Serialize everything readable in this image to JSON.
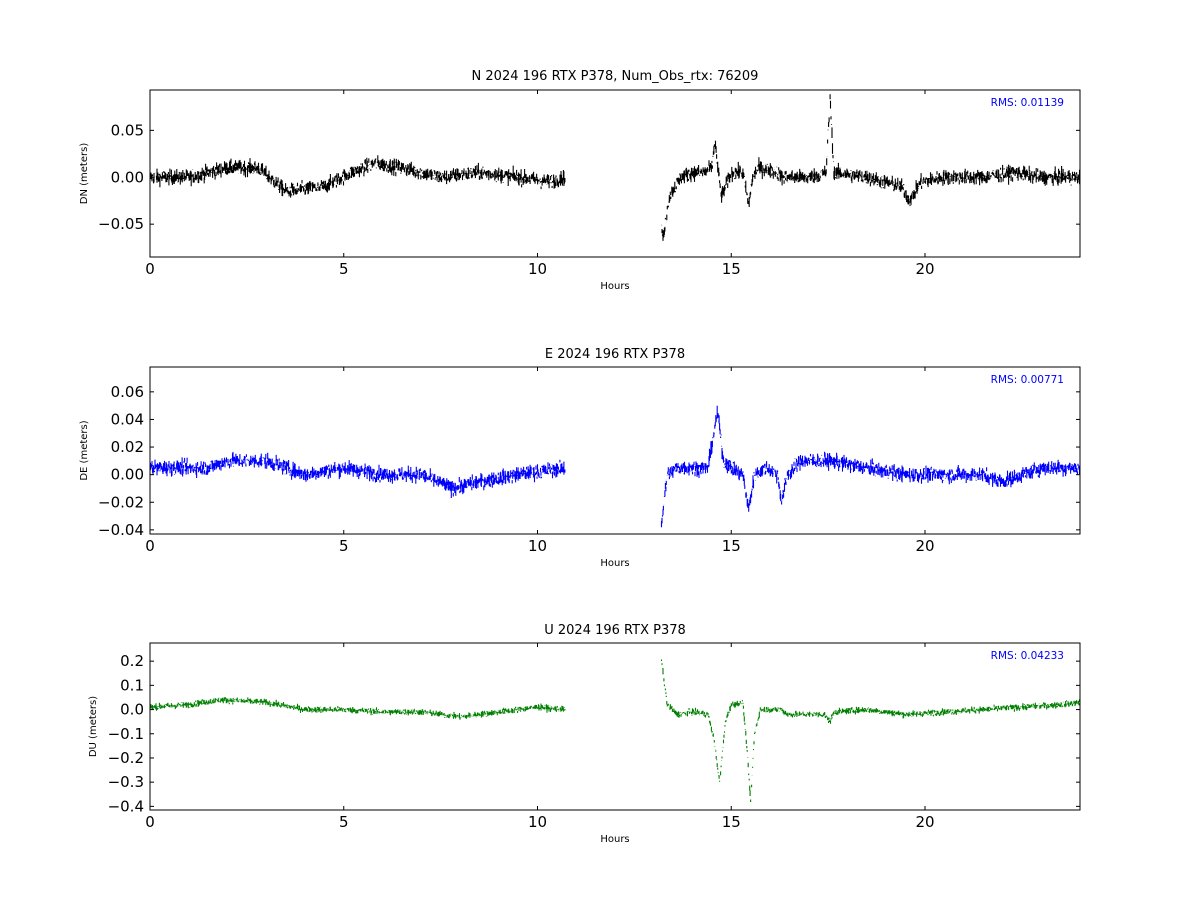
{
  "chart_data": [
    {
      "type": "scatter",
      "title": "N 2024 196 RTX  P378, Num_Obs_rtx: 76209",
      "xlabel": "Hours",
      "ylabel": "DN (meters)",
      "xlim": [
        0,
        24
      ],
      "ylim": [
        -0.085,
        0.093
      ],
      "xticks": [
        0,
        5,
        10,
        15,
        20
      ],
      "xtick_labels": [
        "0",
        "5",
        "10",
        "15",
        "20"
      ],
      "yticks": [
        0.05,
        0.0,
        -0.05
      ],
      "ytick_labels": [
        "0.05",
        "0.00",
        "−0.05"
      ],
      "grid": false,
      "color": "#000000",
      "annotation": "RMS:  0.01139",
      "annotation_color": "#0000ff",
      "series": [
        {
          "noise": 0.008,
          "x": [
            0.0,
            1.0,
            2.0,
            2.8,
            3.5,
            4.5,
            5.2,
            5.8,
            6.5,
            7.5,
            8.5,
            9.5,
            10.3,
            10.72,
            null,
            13.2,
            13.25,
            13.4,
            13.7,
            14.0,
            14.3,
            14.5,
            14.58,
            14.65,
            14.75,
            15.0,
            15.3,
            15.45,
            15.55,
            15.7,
            16.2,
            16.3,
            17.0,
            17.45,
            17.55,
            17.65,
            18.5,
            19.4,
            19.6,
            19.9,
            20.5,
            21.5,
            22.3,
            23.0,
            24.0
          ],
          "y": [
            0.0,
            0.0,
            0.01,
            0.01,
            -0.015,
            -0.01,
            0.005,
            0.015,
            0.01,
            0.0,
            0.005,
            0.0,
            -0.005,
            0.0,
            null,
            -0.055,
            -0.065,
            -0.02,
            0.0,
            0.005,
            0.005,
            0.01,
            0.04,
            0.01,
            -0.02,
            0.005,
            0.005,
            -0.03,
            0.0,
            0.01,
            0.005,
            0.0,
            0.0,
            0.005,
            0.085,
            0.005,
            0.0,
            -0.01,
            -0.025,
            -0.005,
            0.0,
            0.0,
            0.005,
            0.0,
            0.0
          ]
        }
      ]
    },
    {
      "type": "scatter",
      "title": "E 2024 196 RTX  P378",
      "xlabel": "Hours",
      "ylabel": "DE (meters)",
      "xlim": [
        0,
        24
      ],
      "ylim": [
        -0.043,
        0.078
      ],
      "xticks": [
        0,
        5,
        10,
        15,
        20
      ],
      "xtick_labels": [
        "0",
        "5",
        "10",
        "15",
        "20"
      ],
      "yticks": [
        0.06,
        0.04,
        0.02,
        0.0,
        -0.02,
        -0.04
      ],
      "ytick_labels": [
        "0.06",
        "0.04",
        "0.02",
        "0.00",
        "−0.02",
        "−0.04"
      ],
      "grid": false,
      "color": "#0000ff",
      "annotation": "RMS:  0.00771",
      "annotation_color": "#0000ff",
      "series": [
        {
          "noise": 0.0055,
          "x": [
            0.0,
            1.5,
            2.0,
            3.0,
            4.0,
            5.0,
            6.0,
            7.0,
            7.8,
            8.5,
            9.5,
            10.72,
            null,
            13.2,
            13.35,
            13.6,
            14.0,
            14.4,
            14.55,
            14.65,
            14.8,
            15.0,
            15.3,
            15.45,
            15.6,
            15.9,
            16.2,
            16.3,
            16.45,
            16.8,
            17.5,
            18.5,
            19.5,
            20.5,
            21.5,
            22.0,
            23.0,
            24.0
          ],
          "y": [
            0.005,
            0.005,
            0.01,
            0.01,
            0.0,
            0.005,
            0.0,
            0.0,
            -0.01,
            -0.005,
            0.0,
            0.005,
            null,
            -0.035,
            0.0,
            0.005,
            0.005,
            0.005,
            0.03,
            0.045,
            0.01,
            0.005,
            0.0,
            -0.025,
            0.0,
            0.005,
            0.0,
            -0.02,
            0.0,
            0.01,
            0.01,
            0.005,
            0.0,
            0.0,
            0.0,
            -0.005,
            0.005,
            0.005
          ]
        }
      ]
    },
    {
      "type": "scatter",
      "title": "U 2024 196 RTX  P378",
      "xlabel": "Hours",
      "ylabel": "DU (meters)",
      "xlim": [
        0,
        24
      ],
      "ylim": [
        -0.415,
        0.275
      ],
      "xticks": [
        0,
        5,
        10,
        15,
        20
      ],
      "xtick_labels": [
        "0",
        "5",
        "10",
        "15",
        "20"
      ],
      "yticks": [
        0.2,
        0.1,
        0.0,
        -0.1,
        -0.2,
        -0.3,
        -0.4
      ],
      "ytick_labels": [
        "0.2",
        "0.1",
        "0.0",
        "−0.1",
        "−0.2",
        "−0.3",
        "−0.4"
      ],
      "grid": false,
      "color": "#008000",
      "annotation": "RMS:  0.04233",
      "annotation_color": "#0000ff",
      "series": [
        {
          "noise": 0.013,
          "x": [
            0.0,
            1.0,
            1.8,
            3.0,
            4.0,
            5.0,
            6.0,
            7.0,
            8.0,
            9.0,
            10.0,
            10.72,
            null,
            13.2,
            13.35,
            13.6,
            14.0,
            14.4,
            14.55,
            14.7,
            14.85,
            15.0,
            15.3,
            15.4,
            15.5,
            15.6,
            15.75,
            16.0,
            16.3,
            16.45,
            16.8,
            17.4,
            17.55,
            17.65,
            18.5,
            19.5,
            20.5,
            21.5,
            22.5,
            23.5,
            24.0
          ],
          "y": [
            0.01,
            0.02,
            0.04,
            0.03,
            0.0,
            0.0,
            -0.01,
            -0.01,
            -0.03,
            -0.01,
            0.01,
            0.0,
            null,
            0.2,
            0.02,
            -0.02,
            -0.01,
            -0.02,
            -0.12,
            -0.3,
            -0.05,
            0.02,
            0.03,
            -0.15,
            -0.38,
            -0.1,
            0.0,
            0.0,
            0.0,
            -0.02,
            -0.02,
            -0.02,
            -0.05,
            -0.01,
            0.0,
            -0.02,
            -0.01,
            0.0,
            0.01,
            0.02,
            0.03
          ]
        }
      ]
    }
  ]
}
